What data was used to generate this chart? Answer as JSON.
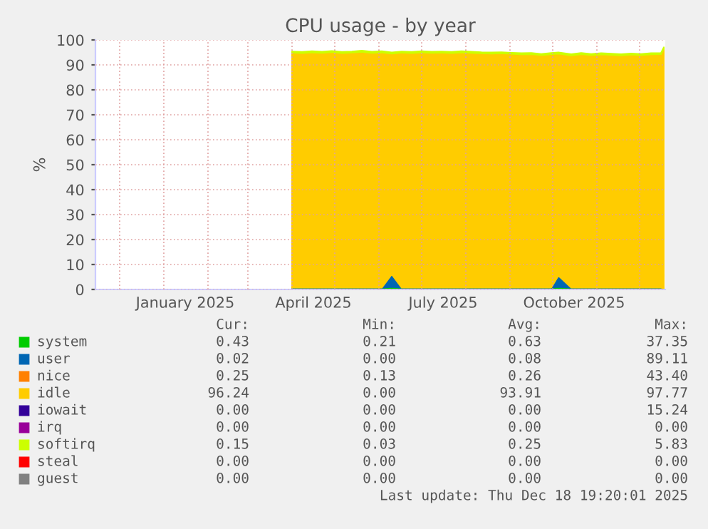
{
  "chart_data": {
    "type": "area",
    "stacked": true,
    "title": "CPU usage - by year",
    "ylabel": "%",
    "x": [
      "2025-04-01",
      "2025-04-08",
      "2025-04-15",
      "2025-04-22",
      "2025-04-29",
      "2025-05-06",
      "2025-05-13",
      "2025-05-20",
      "2025-05-27",
      "2025-06-03",
      "2025-06-10",
      "2025-06-17",
      "2025-06-24",
      "2025-07-01",
      "2025-07-08",
      "2025-07-15",
      "2025-07-22",
      "2025-07-29",
      "2025-08-05",
      "2025-08-12",
      "2025-08-19",
      "2025-08-26",
      "2025-09-02",
      "2025-09-09",
      "2025-09-16",
      "2025-09-23",
      "2025-09-30",
      "2025-10-05",
      "2025-10-14",
      "2025-10-21",
      "2025-10-28",
      "2025-11-04",
      "2025-11-11",
      "2025-11-18",
      "2025-11-25",
      "2025-12-02",
      "2025-12-09",
      "2025-12-16",
      "2025-12-18"
    ],
    "series": [
      {
        "name": "system",
        "color": "#00cc00",
        "values": [
          0.6,
          0.6,
          0.6,
          0.6,
          0.6,
          0.6,
          0.6,
          0.6,
          0.6,
          0.6,
          1.0,
          0.6,
          0.6,
          0.6,
          0.6,
          0.6,
          0.6,
          0.6,
          0.6,
          0.6,
          0.6,
          0.6,
          0.6,
          0.6,
          0.6,
          0.6,
          0.6,
          1.0,
          0.6,
          0.6,
          0.6,
          0.6,
          0.6,
          0.6,
          0.6,
          0.6,
          0.6,
          0.6,
          0.4
        ]
      },
      {
        "name": "user",
        "color": "#0066b3",
        "values": [
          0.1,
          0.1,
          0.1,
          0.1,
          0.1,
          0.1,
          0.1,
          0.1,
          0.1,
          0.1,
          5.0,
          0.1,
          0.1,
          0.1,
          0.1,
          0.1,
          0.1,
          0.1,
          0.1,
          0.1,
          0.1,
          0.1,
          0.1,
          0.1,
          0.1,
          0.1,
          0.1,
          4.5,
          0.1,
          0.1,
          0.1,
          0.1,
          0.1,
          0.1,
          0.1,
          0.1,
          0.1,
          0.1,
          0.0
        ]
      },
      {
        "name": "nice",
        "color": "#ff8000",
        "values": [
          null,
          null,
          null,
          null,
          null,
          null,
          null,
          null,
          null,
          null,
          null,
          null,
          null,
          null,
          null,
          null,
          null,
          null,
          null,
          null,
          null,
          null,
          null,
          null,
          null,
          null,
          null,
          null,
          null,
          null,
          null,
          null,
          null,
          null,
          null,
          null,
          null,
          null,
          null
        ]
      },
      {
        "name": "idle",
        "color": "#ffcc00",
        "values": [
          94.2,
          94.0,
          94.3,
          94.1,
          94.4,
          94.0,
          94.2,
          94.5,
          94.1,
          94.3,
          88.5,
          94.2,
          94.0,
          94.3,
          94.1,
          94.2,
          94.0,
          94.3,
          94.1,
          93.9,
          93.8,
          93.9,
          93.7,
          93.5,
          93.6,
          93.2,
          93.6,
          89.0,
          93.1,
          93.6,
          93.2,
          93.5,
          93.3,
          93.1,
          93.4,
          93.2,
          93.5,
          93.6,
          96.2
        ]
      },
      {
        "name": "iowait",
        "color": "#330099",
        "values": [
          null,
          null,
          null,
          null,
          null,
          null,
          null,
          null,
          null,
          null,
          null,
          null,
          null,
          null,
          null,
          null,
          null,
          null,
          null,
          null,
          null,
          null,
          null,
          null,
          null,
          null,
          null,
          null,
          null,
          null,
          null,
          null,
          null,
          null,
          null,
          null,
          null,
          null,
          null
        ]
      },
      {
        "name": "irq",
        "color": "#990099",
        "values": [
          null,
          null,
          null,
          null,
          null,
          null,
          null,
          null,
          null,
          null,
          null,
          null,
          null,
          null,
          null,
          null,
          null,
          null,
          null,
          null,
          null,
          null,
          null,
          null,
          null,
          null,
          null,
          null,
          null,
          null,
          null,
          null,
          null,
          null,
          null,
          null,
          null,
          null,
          null
        ]
      },
      {
        "name": "softirq",
        "color": "#ccff00",
        "values": [
          0.5,
          0.5,
          0.5,
          0.5,
          0.5,
          0.5,
          0.5,
          0.5,
          0.5,
          0.5,
          0.5,
          0.5,
          0.5,
          0.5,
          0.5,
          0.5,
          0.5,
          0.5,
          0.5,
          0.5,
          0.5,
          0.5,
          0.5,
          0.5,
          0.5,
          0.5,
          0.5,
          0.5,
          0.5,
          0.5,
          0.5,
          0.5,
          0.5,
          0.5,
          0.5,
          0.5,
          0.5,
          0.5,
          0.5
        ]
      },
      {
        "name": "steal",
        "color": "#ff0000",
        "values": [
          null,
          null,
          null,
          null,
          null,
          null,
          null,
          null,
          null,
          null,
          null,
          null,
          null,
          null,
          null,
          null,
          null,
          null,
          null,
          null,
          null,
          null,
          null,
          null,
          null,
          null,
          null,
          null,
          null,
          null,
          null,
          null,
          null,
          null,
          null,
          null,
          null,
          null,
          null
        ]
      },
      {
        "name": "guest",
        "color": "#808080",
        "values": [
          null,
          null,
          null,
          null,
          null,
          null,
          null,
          null,
          null,
          null,
          null,
          null,
          null,
          null,
          null,
          null,
          null,
          null,
          null,
          null,
          null,
          null,
          null,
          null,
          null,
          null,
          null,
          null,
          null,
          null,
          null,
          null,
          null,
          null,
          null,
          null,
          null,
          null,
          null
        ]
      }
    ],
    "xlim": [
      "2024-11-14",
      "2025-12-19"
    ],
    "xticks": [
      {
        "value": "2024-12-01",
        "label": null
      },
      {
        "value": "2025-01-01",
        "label": null
      },
      {
        "value": "2025-01-16",
        "label": "January 2025"
      },
      {
        "value": "2025-02-01",
        "label": null
      },
      {
        "value": "2025-03-01",
        "label": null
      },
      {
        "value": "2025-04-01",
        "label": null
      },
      {
        "value": "2025-04-16",
        "label": "April 2025"
      },
      {
        "value": "2025-05-01",
        "label": null
      },
      {
        "value": "2025-06-01",
        "label": null
      },
      {
        "value": "2025-07-01",
        "label": null
      },
      {
        "value": "2025-07-16",
        "label": "July 2025"
      },
      {
        "value": "2025-08-01",
        "label": null
      },
      {
        "value": "2025-09-01",
        "label": null
      },
      {
        "value": "2025-10-01",
        "label": null
      },
      {
        "value": "2025-10-16",
        "label": "October 2025"
      },
      {
        "value": "2025-11-01",
        "label": null
      },
      {
        "value": "2025-12-01",
        "label": null
      }
    ],
    "ylim": [
      0,
      100
    ],
    "yticks": [
      0,
      10,
      20,
      30,
      40,
      50,
      60,
      70,
      80,
      90,
      100
    ],
    "grid": true,
    "legend": "bottom",
    "annotations": [
      "Cur:",
      "Min:",
      "Avg:",
      "Max:",
      "0.43",
      "0.21",
      "0.63",
      "37.35",
      "0.02",
      "0.00",
      "0.08",
      "89.11",
      "0.25",
      "0.13",
      "0.26",
      "43.40",
      "96.24",
      "0.00",
      "93.91",
      "97.77",
      "0.00",
      "0.00",
      "0.00",
      "15.24",
      "0.00",
      "0.00",
      "0.00",
      "0.00",
      "0.15",
      "0.03",
      "0.25",
      "5.83",
      "0.00",
      "0.00",
      "0.00",
      "0.00",
      "0.00",
      "0.00",
      "0.00",
      "0.00",
      "Last update: Thu Dec 18 19:20:01 2025"
    ]
  }
}
